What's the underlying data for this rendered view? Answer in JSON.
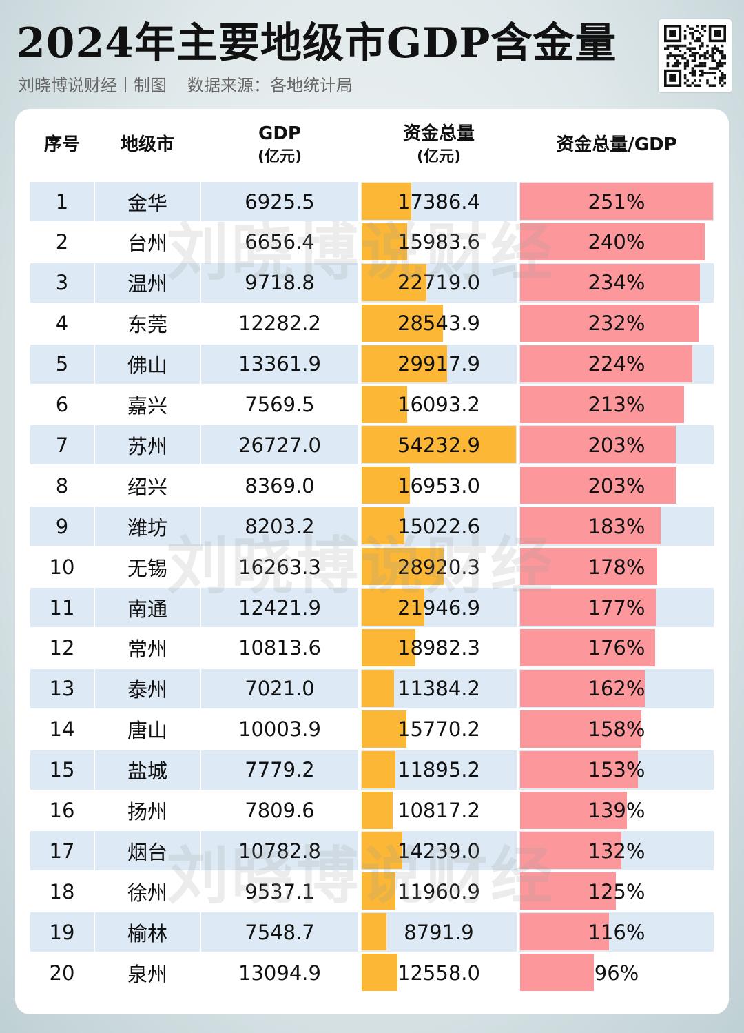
{
  "title": "2024年主要地级市GDP含金量",
  "subtitle": {
    "author": "刘晓博说财经丨制图",
    "source": "数据来源：各地统计局"
  },
  "watermark": "刘晓博说财经",
  "colors": {
    "fund_bar": "#fbb735",
    "ratio_bar": "#fc989c",
    "row_stripe": "#dde9f4"
  },
  "chart_data": {
    "type": "table",
    "columns": [
      {
        "key": "rank",
        "label": "序号",
        "unit": ""
      },
      {
        "key": "city",
        "label": "地级市",
        "unit": ""
      },
      {
        "key": "gdp",
        "label": "GDP",
        "unit": "(亿元)"
      },
      {
        "key": "funds",
        "label": "资金总量",
        "unit": "(亿元)"
      },
      {
        "key": "ratio",
        "label": "资金总量/GDP",
        "unit": ""
      }
    ],
    "rows": [
      {
        "rank": "1",
        "city": "金华",
        "gdp": "6925.5",
        "funds": "17386.4",
        "ratio": "251%"
      },
      {
        "rank": "2",
        "city": "台州",
        "gdp": "6656.4",
        "funds": "15983.6",
        "ratio": "240%"
      },
      {
        "rank": "3",
        "city": "温州",
        "gdp": "9718.8",
        "funds": "22719.0",
        "ratio": "234%"
      },
      {
        "rank": "4",
        "city": "东莞",
        "gdp": "12282.2",
        "funds": "28543.9",
        "ratio": "232%"
      },
      {
        "rank": "5",
        "city": "佛山",
        "gdp": "13361.9",
        "funds": "29917.9",
        "ratio": "224%"
      },
      {
        "rank": "6",
        "city": "嘉兴",
        "gdp": "7569.5",
        "funds": "16093.2",
        "ratio": "213%"
      },
      {
        "rank": "7",
        "city": "苏州",
        "gdp": "26727.0",
        "funds": "54232.9",
        "ratio": "203%"
      },
      {
        "rank": "8",
        "city": "绍兴",
        "gdp": "8369.0",
        "funds": "16953.0",
        "ratio": "203%"
      },
      {
        "rank": "9",
        "city": "潍坊",
        "gdp": "8203.2",
        "funds": "15022.6",
        "ratio": "183%"
      },
      {
        "rank": "10",
        "city": "无锡",
        "gdp": "16263.3",
        "funds": "28920.3",
        "ratio": "178%"
      },
      {
        "rank": "11",
        "city": "南通",
        "gdp": "12421.9",
        "funds": "21946.9",
        "ratio": "177%"
      },
      {
        "rank": "12",
        "city": "常州",
        "gdp": "10813.6",
        "funds": "18982.3",
        "ratio": "176%"
      },
      {
        "rank": "13",
        "city": "泰州",
        "gdp": "7021.0",
        "funds": "11384.2",
        "ratio": "162%"
      },
      {
        "rank": "14",
        "city": "唐山",
        "gdp": "10003.9",
        "funds": "15770.2",
        "ratio": "158%"
      },
      {
        "rank": "15",
        "city": "盐城",
        "gdp": "7779.2",
        "funds": "11895.2",
        "ratio": "153%"
      },
      {
        "rank": "16",
        "city": "扬州",
        "gdp": "7809.6",
        "funds": "10817.2",
        "ratio": "139%"
      },
      {
        "rank": "17",
        "city": "烟台",
        "gdp": "10782.8",
        "funds": "14239.0",
        "ratio": "132%"
      },
      {
        "rank": "18",
        "city": "徐州",
        "gdp": "9537.1",
        "funds": "11960.9",
        "ratio": "125%"
      },
      {
        "rank": "19",
        "city": "榆林",
        "gdp": "7548.7",
        "funds": "8791.9",
        "ratio": "116%"
      },
      {
        "rank": "20",
        "city": "泉州",
        "gdp": "13094.9",
        "funds": "12558.0",
        "ratio": "96%"
      }
    ]
  }
}
